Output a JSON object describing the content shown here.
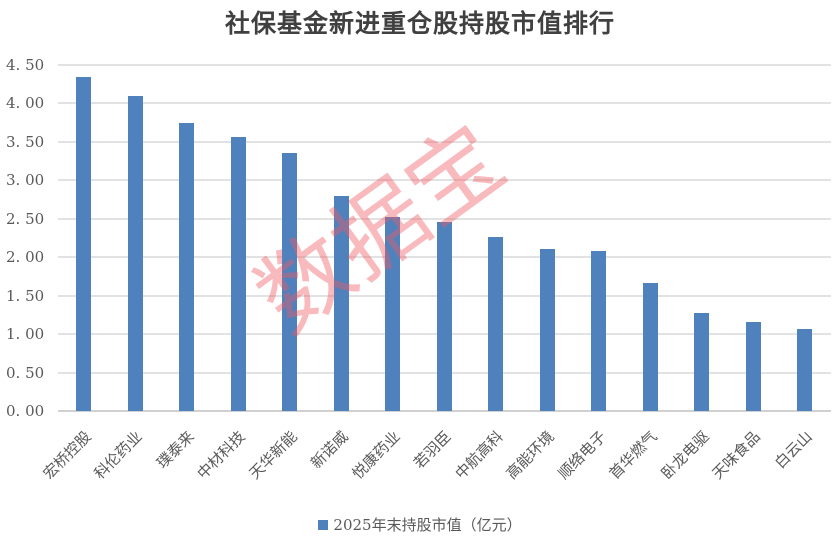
{
  "chart_data": {
    "type": "bar",
    "title": "社保基金新进重仓股持股市值排行",
    "xlabel": "",
    "ylabel": "",
    "ylim": [
      0,
      4.5
    ],
    "yticks": [
      "0.00",
      "0.50",
      "1.00",
      "1.50",
      "2.00",
      "2.50",
      "3.00",
      "3.50",
      "4.00",
      "4.50"
    ],
    "grid": true,
    "legend_position": "bottom",
    "categories": [
      "宏桥控股",
      "科伦药业",
      "璞泰来",
      "中材科技",
      "天华新能",
      "新诺威",
      "悦康药业",
      "若羽臣",
      "中航高科",
      "高能环境",
      "顺络电子",
      "首华燃气",
      "卧龙电驱",
      "天味食品",
      "白云山"
    ],
    "series": [
      {
        "name": "2025年末持股市值（亿元）",
        "color": "#4f81bd",
        "values": [
          4.35,
          4.1,
          3.75,
          3.56,
          3.35,
          2.8,
          2.52,
          2.46,
          2.26,
          2.11,
          2.08,
          1.66,
          1.27,
          1.16,
          1.07
        ]
      }
    ],
    "watermark": "数据宝"
  }
}
